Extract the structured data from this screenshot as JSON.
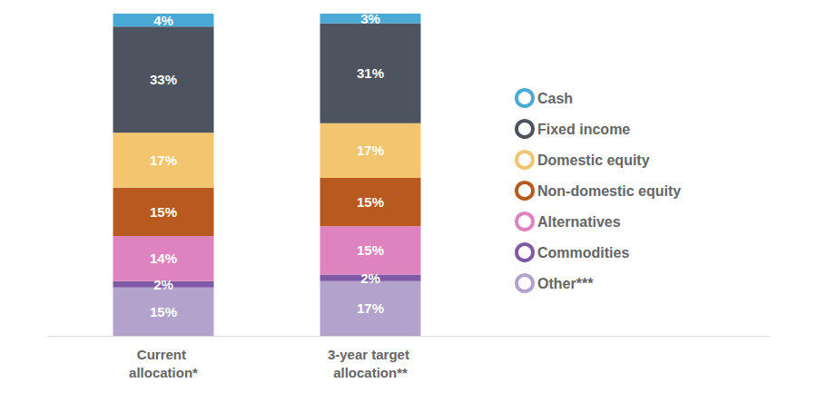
{
  "chart_data": {
    "type": "bar",
    "stacked": true,
    "data_labels": true,
    "tick_labels": "x",
    "grid": false,
    "legend": "right",
    "categories": [
      "Current allocation*",
      "3-year target allocation**"
    ],
    "ylim": [
      0,
      100
    ],
    "series": [
      {
        "name": "Cash",
        "color": "#4ba9d6",
        "values": [
          4,
          3
        ],
        "value_labels": [
          "4%",
          "3%"
        ]
      },
      {
        "name": "Fixed income",
        "color": "#4d535f",
        "values": [
          33,
          31
        ],
        "value_labels": [
          "33%",
          "31%"
        ]
      },
      {
        "name": "Domestic equity",
        "color": "#f3c56f",
        "values": [
          17,
          17
        ],
        "value_labels": [
          "17%",
          "17%"
        ]
      },
      {
        "name": "Non-domestic equity",
        "color": "#b85a1f",
        "values": [
          15,
          15
        ],
        "value_labels": [
          "15%",
          "15%"
        ]
      },
      {
        "name": "Alternatives",
        "color": "#de83bf",
        "values": [
          14,
          15
        ],
        "value_labels": [
          "14%",
          "15%"
        ]
      },
      {
        "name": "Commodities",
        "color": "#7e5aa6",
        "values": [
          2,
          2
        ],
        "value_labels": [
          "2%",
          "2%"
        ]
      },
      {
        "name": "Other***",
        "color": "#b3a3cc",
        "values": [
          15,
          17
        ],
        "value_labels": [
          "15%",
          "17%"
        ]
      }
    ]
  }
}
